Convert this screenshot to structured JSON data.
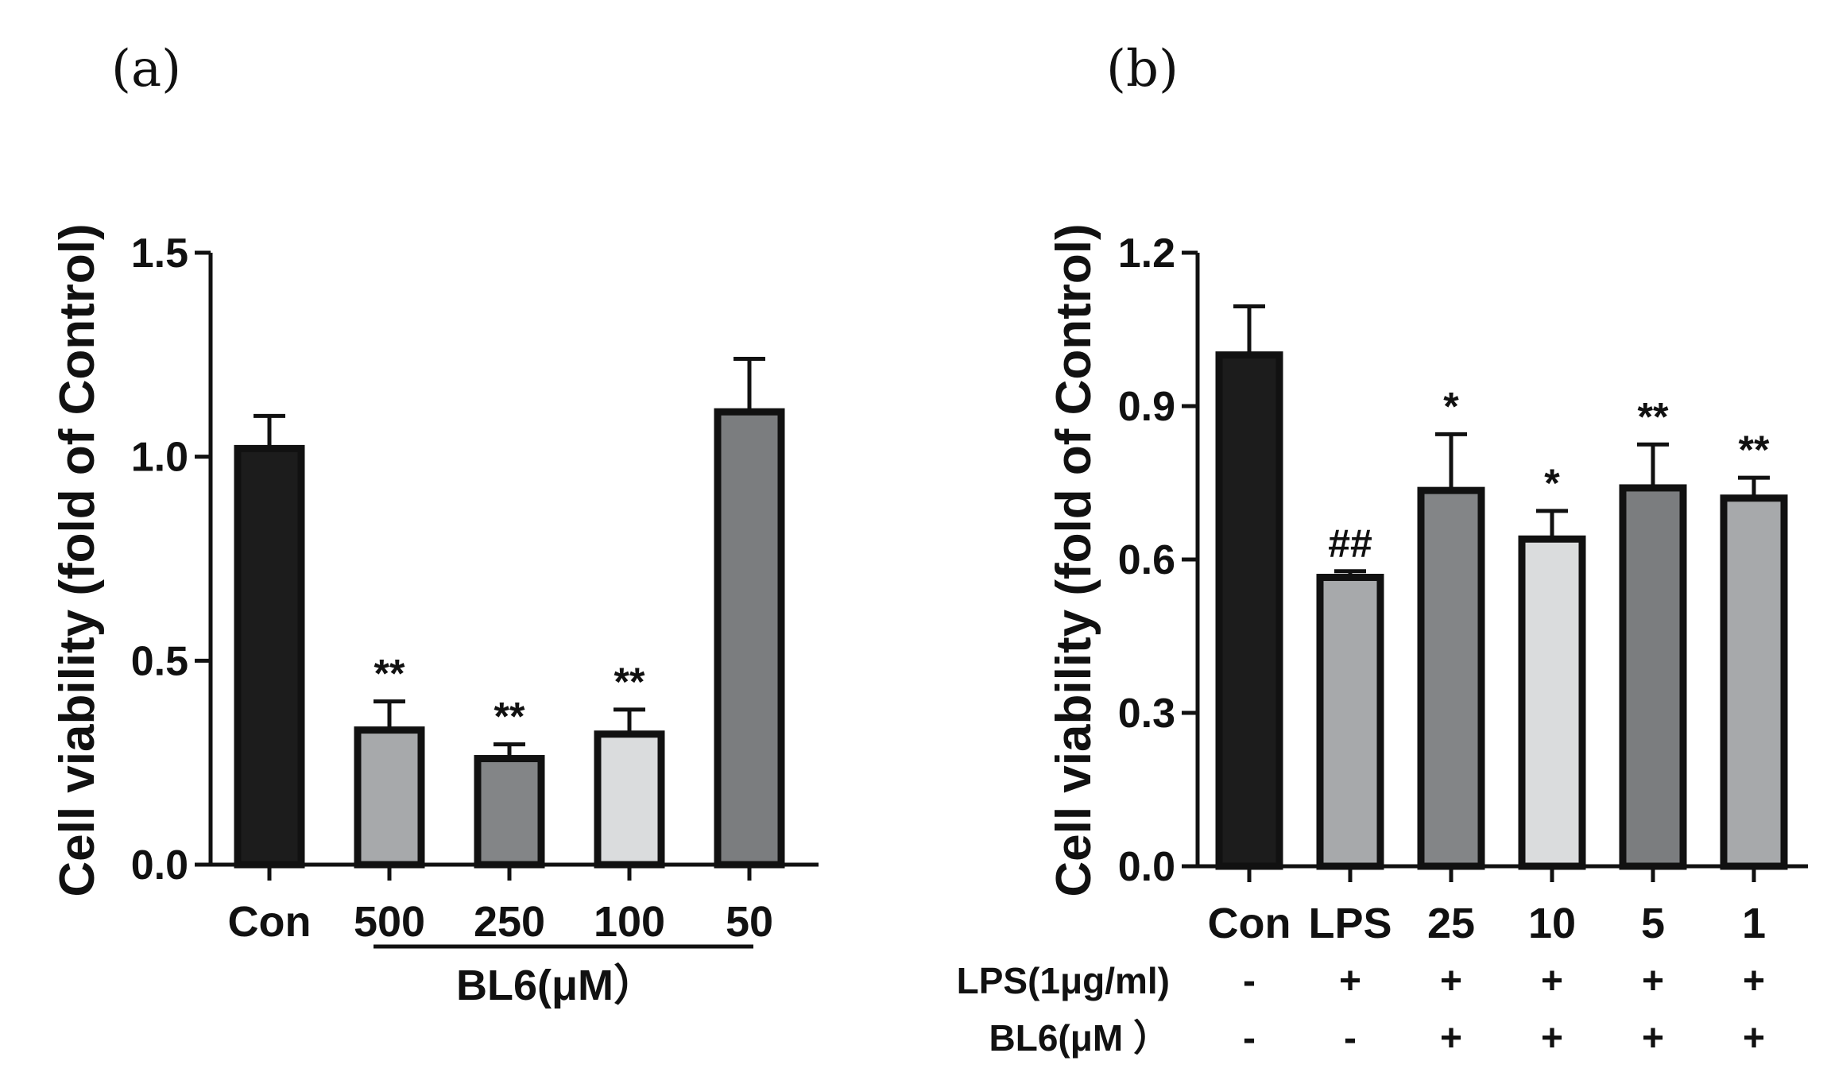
{
  "chart_data": [
    {
      "type": "bar",
      "panel_label": "(a)",
      "ylabel": "Cell viability (fold of Control)",
      "xlabel": "BL6(μM）",
      "ylim": [
        0,
        1.5
      ],
      "yticks": [
        "0.0",
        "0.5",
        "1.0",
        "1.5"
      ],
      "ytick_values": [
        0,
        0.5,
        1.0,
        1.5
      ],
      "categories": [
        "Con",
        "500",
        "250",
        "100",
        "50"
      ],
      "values": [
        1.02,
        0.33,
        0.26,
        0.32,
        1.11
      ],
      "errors": [
        0.08,
        0.07,
        0.035,
        0.06,
        0.13
      ],
      "significance": [
        "",
        "**",
        "**",
        "**",
        ""
      ],
      "bar_colors": [
        "#1c1c1c",
        "#a7a9ab",
        "#838587",
        "#dadcdd",
        "#7b7d7f"
      ],
      "group_bracket_label": "BL6(μM）"
    },
    {
      "type": "bar",
      "panel_label": "(b)",
      "ylabel": "Cell viability (fold of Control)",
      "ylim": [
        0,
        1.2
      ],
      "yticks": [
        "0.0",
        "0.3",
        "0.6",
        "0.9",
        "1.2"
      ],
      "ytick_values": [
        0,
        0.3,
        0.6,
        0.9,
        1.2
      ],
      "categories": [
        "Con",
        "LPS",
        "25",
        "10",
        "5",
        "1"
      ],
      "values": [
        1.0,
        0.565,
        0.735,
        0.64,
        0.74,
        0.72
      ],
      "errors": [
        0.095,
        0.012,
        0.11,
        0.055,
        0.085,
        0.04
      ],
      "significance": [
        "",
        "##",
        "*",
        "*",
        "**",
        "**"
      ],
      "bar_colors": [
        "#1c1c1c",
        "#a7a9ab",
        "#838587",
        "#dadcdd",
        "#7b7d7f",
        "#a7a9ab"
      ],
      "treatment_rows": [
        {
          "label": "LPS(1μg/ml)",
          "values": [
            "-",
            "+",
            "+",
            "+",
            "+",
            "+"
          ]
        },
        {
          "label": "BL6(μM ）",
          "values": [
            "-",
            "-",
            "+",
            "+",
            "+",
            "+"
          ]
        }
      ]
    }
  ]
}
